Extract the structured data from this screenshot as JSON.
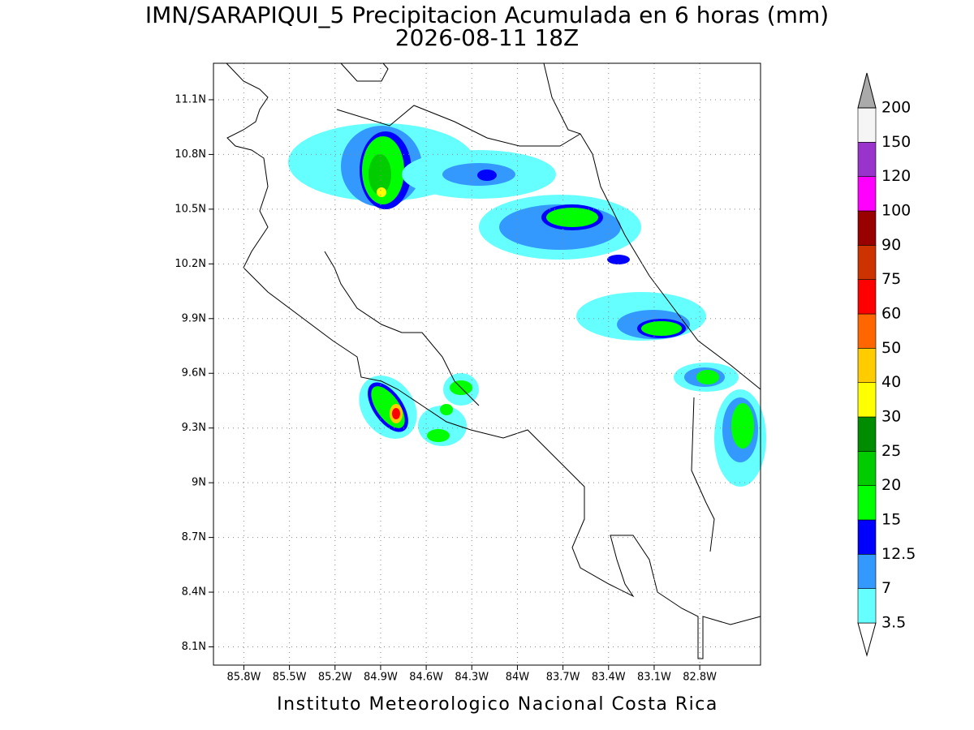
{
  "title": [
    "IMN/SARAPIQUI_5 Precipitacion Acumulada en 6 horas (mm)",
    "2026-08-11 18Z"
  ],
  "map": {
    "xlim": [
      -86.0,
      -82.4
    ],
    "xticks": [
      {
        "value": -85.8,
        "label": "85.8W"
      },
      {
        "value": -85.5,
        "label": "85.5W"
      },
      {
        "value": -85.2,
        "label": "85.2W"
      },
      {
        "value": -84.9,
        "label": "84.9W"
      },
      {
        "value": -84.6,
        "label": "84.6W"
      },
      {
        "value": -84.3,
        "label": "84.3W"
      },
      {
        "value": -84.0,
        "label": "84W"
      },
      {
        "value": -83.7,
        "label": "83.7W"
      },
      {
        "value": -83.4,
        "label": "83.4W"
      },
      {
        "value": -83.1,
        "label": "83.1W"
      },
      {
        "value": -82.8,
        "label": "82.8W"
      }
    ],
    "ylim": [
      8.0,
      11.3
    ],
    "yticks": [
      {
        "value": 8.1,
        "label": "8.1N"
      },
      {
        "value": 8.4,
        "label": "8.4N"
      },
      {
        "value": 8.7,
        "label": "8.7N"
      },
      {
        "value": 9.0,
        "label": "9N"
      },
      {
        "value": 9.3,
        "label": "9.3N"
      },
      {
        "value": 9.6,
        "label": "9.6N"
      },
      {
        "value": 9.9,
        "label": "9.9N"
      },
      {
        "value": 10.2,
        "label": "10.2N"
      },
      {
        "value": 10.5,
        "label": "10.5N"
      },
      {
        "value": 10.8,
        "label": "10.8N"
      },
      {
        "value": 11.1,
        "label": "11.1N"
      }
    ],
    "grid": true
  },
  "colorbar": {
    "levels": [
      3.5,
      7,
      {
        "value": 12.5,
        "label": "12.5"
      },
      15,
      20,
      25,
      30,
      40,
      50,
      60,
      75,
      90,
      100,
      120,
      150,
      200
    ],
    "colors": [
      "#ffffff",
      "#66ffff",
      "#3399ff",
      "#0000ff",
      "#00ff00",
      "#00cc00",
      "#008c00",
      "#ffff00",
      "#ffcc00",
      "#ff6600",
      "#ff0000",
      "#cc3300",
      "#990000",
      "#ff00ff",
      "#9933cc",
      "#f5f5f5",
      "#aaaaaa"
    ]
  },
  "footer": "Instituto Meteorologico Nacional Costa Rica"
}
